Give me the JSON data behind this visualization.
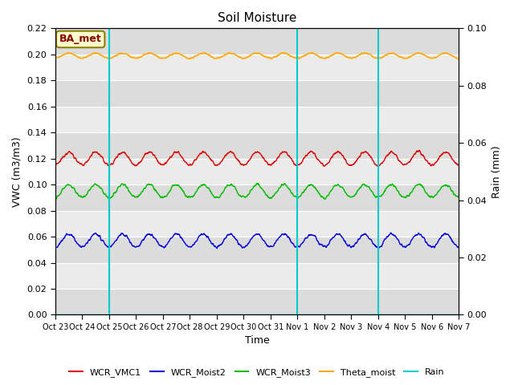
{
  "title": "Soil Moisture",
  "ylabel_left": "VWC (m3/m3)",
  "ylabel_right": "Rain (mm)",
  "xlabel": "Time",
  "annotation": "BA_met",
  "ylim_left": [
    0.0,
    0.22
  ],
  "ylim_right": [
    0.0,
    0.1
  ],
  "yticks_left": [
    0.0,
    0.02,
    0.04,
    0.06,
    0.08,
    0.1,
    0.12,
    0.14,
    0.16,
    0.18,
    0.2,
    0.22
  ],
  "yticks_right": [
    0.0,
    0.02,
    0.04,
    0.06,
    0.08,
    0.1
  ],
  "n_points": 1440,
  "WCR_VMC1_base": 0.12,
  "WCR_VMC1_amp": 0.005,
  "WCR_Moist2_base": 0.057,
  "WCR_Moist2_amp": 0.005,
  "WCR_Moist3_base": 0.095,
  "WCR_Moist3_amp": 0.005,
  "Theta_moist_base": 0.199,
  "Theta_moist_amp": 0.002,
  "color_WCR_VMC1": "#dd0000",
  "color_WCR_Moist2": "#0000dd",
  "color_WCR_Moist3": "#00bb00",
  "color_Theta_moist": "#ffaa00",
  "color_Rain": "#00cccc",
  "color_vlines": "#00cccc",
  "bg_color_dark": "#dcdcdc",
  "bg_color_light": "#ebebeb",
  "vline_positions": [
    2,
    9,
    12
  ],
  "x_tick_labels": [
    "Oct 23",
    "Oct 24",
    "Oct 25",
    "Oct 26",
    "Oct 27",
    "Oct 28",
    "Oct 29",
    "Oct 30",
    "Oct 31",
    "Nov 1",
    "Nov 2",
    "Nov 3",
    "Nov 4",
    "Nov 5",
    "Nov 6",
    "Nov 7"
  ],
  "legend_labels": [
    "WCR_VMC1",
    "WCR_Moist2",
    "WCR_Moist3",
    "Theta_moist",
    "Rain"
  ]
}
